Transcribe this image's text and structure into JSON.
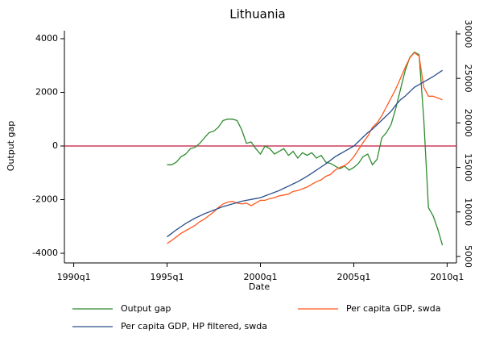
{
  "chart_data": {
    "type": "line",
    "title": "Lithuania",
    "x_label": "Date",
    "y_label": "Output gap",
    "x": [
      "1995q1",
      "1995q2",
      "1995q3",
      "1995q4",
      "1996q1",
      "1996q2",
      "1996q3",
      "1996q4",
      "1997q1",
      "1997q2",
      "1997q3",
      "1997q4",
      "1998q1",
      "1998q2",
      "1998q3",
      "1998q4",
      "1999q1",
      "1999q2",
      "1999q3",
      "1999q4",
      "2000q1",
      "2000q2",
      "2000q3",
      "2000q4",
      "2001q1",
      "2001q2",
      "2001q3",
      "2001q4",
      "2002q1",
      "2002q2",
      "2002q3",
      "2002q4",
      "2003q1",
      "2003q2",
      "2003q3",
      "2003q4",
      "2004q1",
      "2004q2",
      "2004q3",
      "2004q4",
      "2005q1",
      "2005q2",
      "2005q3",
      "2005q4",
      "2006q1",
      "2006q2",
      "2006q3",
      "2006q4",
      "2007q1",
      "2007q2",
      "2007q3",
      "2007q4",
      "2008q1",
      "2008q2",
      "2008q3",
      "2008q4",
      "2009q1",
      "2009q2",
      "2009q3",
      "2009q4"
    ],
    "series": [
      {
        "name": "Output gap",
        "color": "#2e8b2e",
        "values": [
          -700,
          -700,
          -600,
          -400,
          -300,
          -100,
          -50,
          100,
          300,
          500,
          550,
          700,
          950,
          1000,
          1000,
          950,
          600,
          100,
          150,
          -100,
          -300,
          0,
          -100,
          -300,
          -200,
          -100,
          -350,
          -200,
          -450,
          -250,
          -350,
          -250,
          -450,
          -350,
          -600,
          -650,
          -750,
          -850,
          -750,
          -900,
          -800,
          -650,
          -400,
          -300,
          -700,
          -500,
          300,
          500,
          800,
          1400,
          2100,
          2800,
          3300,
          3500,
          3400,
          1000,
          -2300,
          -2600,
          -3100,
          -3700
        ]
      },
      {
        "name": "Per capita GDP, swda",
        "color": "#ff5a1e",
        "axis": "y2",
        "values": [
          6450,
          6800,
          7200,
          7600,
          7900,
          8200,
          8500,
          8900,
          9200,
          9600,
          10000,
          10500,
          10900,
          11100,
          11200,
          11000,
          10900,
          11000,
          10700,
          11000,
          11300,
          11300,
          11500,
          11600,
          11800,
          11900,
          12000,
          12300,
          12400,
          12600,
          12800,
          13100,
          13400,
          13600,
          14000,
          14200,
          14700,
          15000,
          15200,
          15600,
          16200,
          17000,
          17800,
          18500,
          19500,
          20000,
          20800,
          21800,
          22800,
          23800,
          25000,
          26200,
          27300,
          27900,
          27500,
          24000,
          23000,
          23000,
          22800,
          22600
        ]
      },
      {
        "name": "Per capita GDP, HP filtered, swda",
        "color": "#2b4f8c",
        "axis": "y2",
        "values": [
          7200,
          7600,
          8000,
          8350,
          8700,
          9000,
          9300,
          9550,
          9800,
          10000,
          10200,
          10400,
          10600,
          10750,
          10900,
          11050,
          11200,
          11300,
          11400,
          11500,
          11600,
          11800,
          12000,
          12200,
          12400,
          12650,
          12900,
          13150,
          13400,
          13700,
          14000,
          14350,
          14700,
          15050,
          15400,
          15800,
          16200,
          16500,
          16800,
          17100,
          17400,
          17900,
          18400,
          18900,
          19300,
          19800,
          20300,
          20800,
          21300,
          22000,
          22600,
          23000,
          23500,
          24000,
          24300,
          24600,
          24900,
          25200,
          25550,
          25900
        ]
      }
    ],
    "xlim": [
      "1989q3",
      "2010q3"
    ],
    "xticks": [
      "1990q1",
      "1995q1",
      "2000q1",
      "2005q1",
      "2010q1"
    ],
    "ylim": [
      -4360,
      4300
    ],
    "yticks": [
      -4000,
      -2000,
      0,
      2000,
      4000
    ],
    "y2lim": [
      4275,
      30360
    ],
    "y2ticks": [
      5000,
      10000,
      15000,
      20000,
      25000,
      30000
    ],
    "reference_line": {
      "value": 0,
      "color": "#c8143c"
    },
    "grid": false
  }
}
